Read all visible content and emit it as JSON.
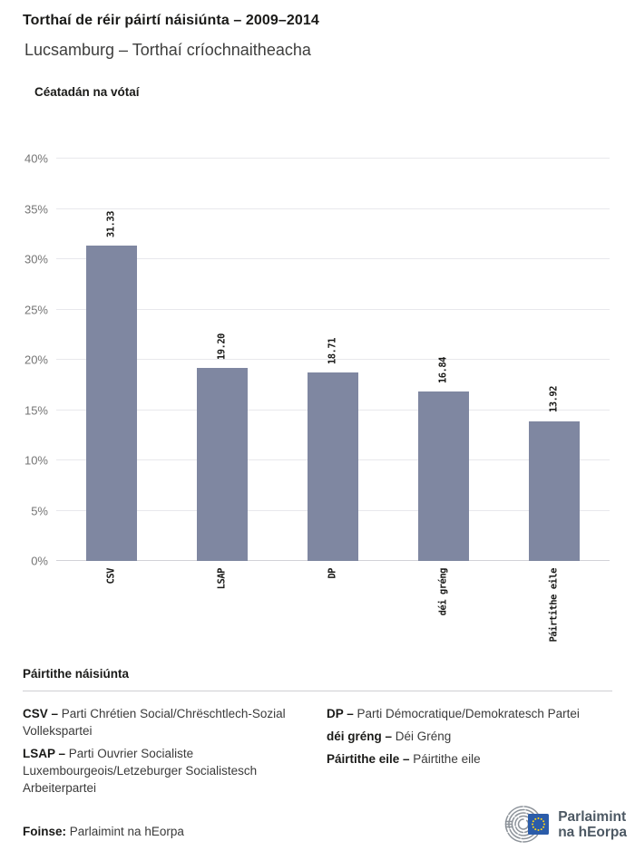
{
  "header": {
    "title": "Torthaí de réir páirtí náisiúnta – 2009–2014",
    "subtitle": "Lucsamburg – Torthaí críochnaitheacha"
  },
  "chart_data": {
    "type": "bar",
    "title": "Torthaí de réir páirtí náisiúnta – 2009–2014 (Lucsamburg – Torthaí críochnaitheacha)",
    "ylabel": "Céatadán na vótaí",
    "categories": [
      "CSV",
      "LSAP",
      "DP",
      "déi gréng",
      "Páirtithe eile"
    ],
    "values": [
      31.33,
      19.2,
      18.71,
      16.84,
      13.92
    ],
    "value_labels": [
      "31.33",
      "19.20",
      "18.71",
      "16.84",
      "13.92"
    ],
    "ylim": [
      0,
      40
    ],
    "yticks": [
      "0%",
      "5%",
      "10%",
      "15%",
      "20%",
      "25%",
      "30%",
      "35%",
      "40%"
    ],
    "grid": true,
    "legend_position": "none",
    "bar_color": "#7f87a1"
  },
  "legend": {
    "heading": "Páirtithe náisiúnta",
    "separator": "–",
    "columns": [
      [
        {
          "term": "CSV",
          "definition": "Parti Chrétien Social/Chrëschtlech-Sozial Vollekspartei"
        },
        {
          "term": "LSAP",
          "definition": "Parti Ouvrier Socialiste Luxembourgeois/Letzeburger Socialistesch Arbeiterpartei"
        }
      ],
      [
        {
          "term": "DP",
          "definition": "Parti Démocratique/Demokratesch Partei"
        },
        {
          "term": "déi gréng",
          "definition": "Déi Gréng"
        },
        {
          "term": "Páirtithe eile",
          "definition": "Páirtithe eile"
        }
      ]
    ]
  },
  "footer": {
    "source_label": "Foinse:",
    "source_value": "Parlaimint na hEorpa",
    "logo_line1": "Parlaimint",
    "logo_line2": "na hEorpa"
  },
  "colors": {
    "bar": "#7f87a1",
    "gridline": "#e8e8ec",
    "eu_flag_blue": "#2b5ca9",
    "eu_star_yellow": "#ffd617",
    "logo_gray": "#8d939a"
  }
}
